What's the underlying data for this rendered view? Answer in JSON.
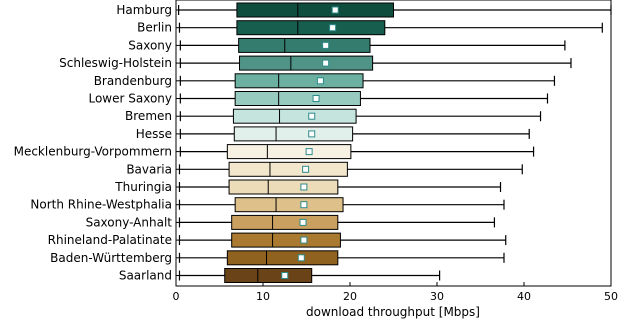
{
  "chart_data": {
    "type": "boxplot",
    "orientation": "horizontal",
    "xlabel": "download throughput [Mbps]",
    "ylabel": "",
    "xlim": [
      0,
      50
    ],
    "xticks": [
      0,
      10,
      20,
      30,
      40,
      50
    ],
    "grid": false,
    "legend": "none",
    "series": [
      {
        "name": "Hamburg",
        "color": "#0f4e3f",
        "whisker_low": 0.3,
        "q1": 7.0,
        "median": 14.0,
        "mean": 18.3,
        "q3": 25.0,
        "whisker_high": 50.0
      },
      {
        "name": "Berlin",
        "color": "#185e4f",
        "whisker_low": 0.4,
        "q1": 7.0,
        "median": 14.0,
        "mean": 18.0,
        "q3": 24.0,
        "whisker_high": 49.0
      },
      {
        "name": "Saxony",
        "color": "#347d6e",
        "whisker_low": 0.5,
        "q1": 7.2,
        "median": 12.5,
        "mean": 17.2,
        "q3": 22.3,
        "whisker_high": 44.7
      },
      {
        "name": "Schleswig-Holstein",
        "color": "#4f9486",
        "whisker_low": 0.5,
        "q1": 7.3,
        "median": 13.2,
        "mean": 17.2,
        "q3": 22.6,
        "whisker_high": 45.4
      },
      {
        "name": "Brandenburg",
        "color": "#6cb0a2",
        "whisker_low": 0.5,
        "q1": 6.8,
        "median": 11.8,
        "mean": 16.6,
        "q3": 21.5,
        "whisker_high": 43.5
      },
      {
        "name": "Lower Saxony",
        "color": "#98cbc0",
        "whisker_low": 0.5,
        "q1": 6.8,
        "median": 11.8,
        "mean": 16.1,
        "q3": 21.2,
        "whisker_high": 42.7
      },
      {
        "name": "Bremen",
        "color": "#c4e4dd",
        "whisker_low": 0.5,
        "q1": 6.6,
        "median": 11.9,
        "mean": 15.6,
        "q3": 20.7,
        "whisker_high": 41.9
      },
      {
        "name": "Hesse",
        "color": "#e2f0ec",
        "whisker_low": 0.5,
        "q1": 6.7,
        "median": 11.5,
        "mean": 15.6,
        "q3": 20.3,
        "whisker_high": 40.6
      },
      {
        "name": "Mecklenburg-Vorpommern",
        "color": "#f6f1e2",
        "whisker_low": 0.5,
        "q1": 5.9,
        "median": 10.5,
        "mean": 15.3,
        "q3": 20.1,
        "whisker_high": 41.1
      },
      {
        "name": "Bavaria",
        "color": "#f2e7cc",
        "whisker_low": 0.4,
        "q1": 6.1,
        "median": 10.8,
        "mean": 14.9,
        "q3": 19.7,
        "whisker_high": 39.8
      },
      {
        "name": "Thuringia",
        "color": "#ecdcb8",
        "whisker_low": 0.4,
        "q1": 6.1,
        "median": 10.6,
        "mean": 14.7,
        "q3": 18.6,
        "whisker_high": 37.3
      },
      {
        "name": "North Rhine-Westphalia",
        "color": "#ddc08a",
        "whisker_low": 0.4,
        "q1": 6.8,
        "median": 11.5,
        "mean": 14.7,
        "q3": 19.2,
        "whisker_high": 37.7
      },
      {
        "name": "Saxony-Anhalt",
        "color": "#c9a060",
        "whisker_low": 0.4,
        "q1": 6.4,
        "median": 11.1,
        "mean": 14.6,
        "q3": 18.6,
        "whisker_high": 36.6
      },
      {
        "name": "Rhineland-Palatinate",
        "color": "#a97a30",
        "whisker_low": 0.4,
        "q1": 6.4,
        "median": 11.1,
        "mean": 14.7,
        "q3": 18.9,
        "whisker_high": 37.9
      },
      {
        "name": "Baden-Württemberg",
        "color": "#906220",
        "whisker_low": 0.4,
        "q1": 5.9,
        "median": 10.4,
        "mean": 14.4,
        "q3": 18.6,
        "whisker_high": 37.7
      },
      {
        "name": "Saarland",
        "color": "#6a4418",
        "whisker_low": 0.4,
        "q1": 5.6,
        "median": 9.4,
        "mean": 12.5,
        "q3": 15.6,
        "whisker_high": 30.3
      }
    ]
  }
}
